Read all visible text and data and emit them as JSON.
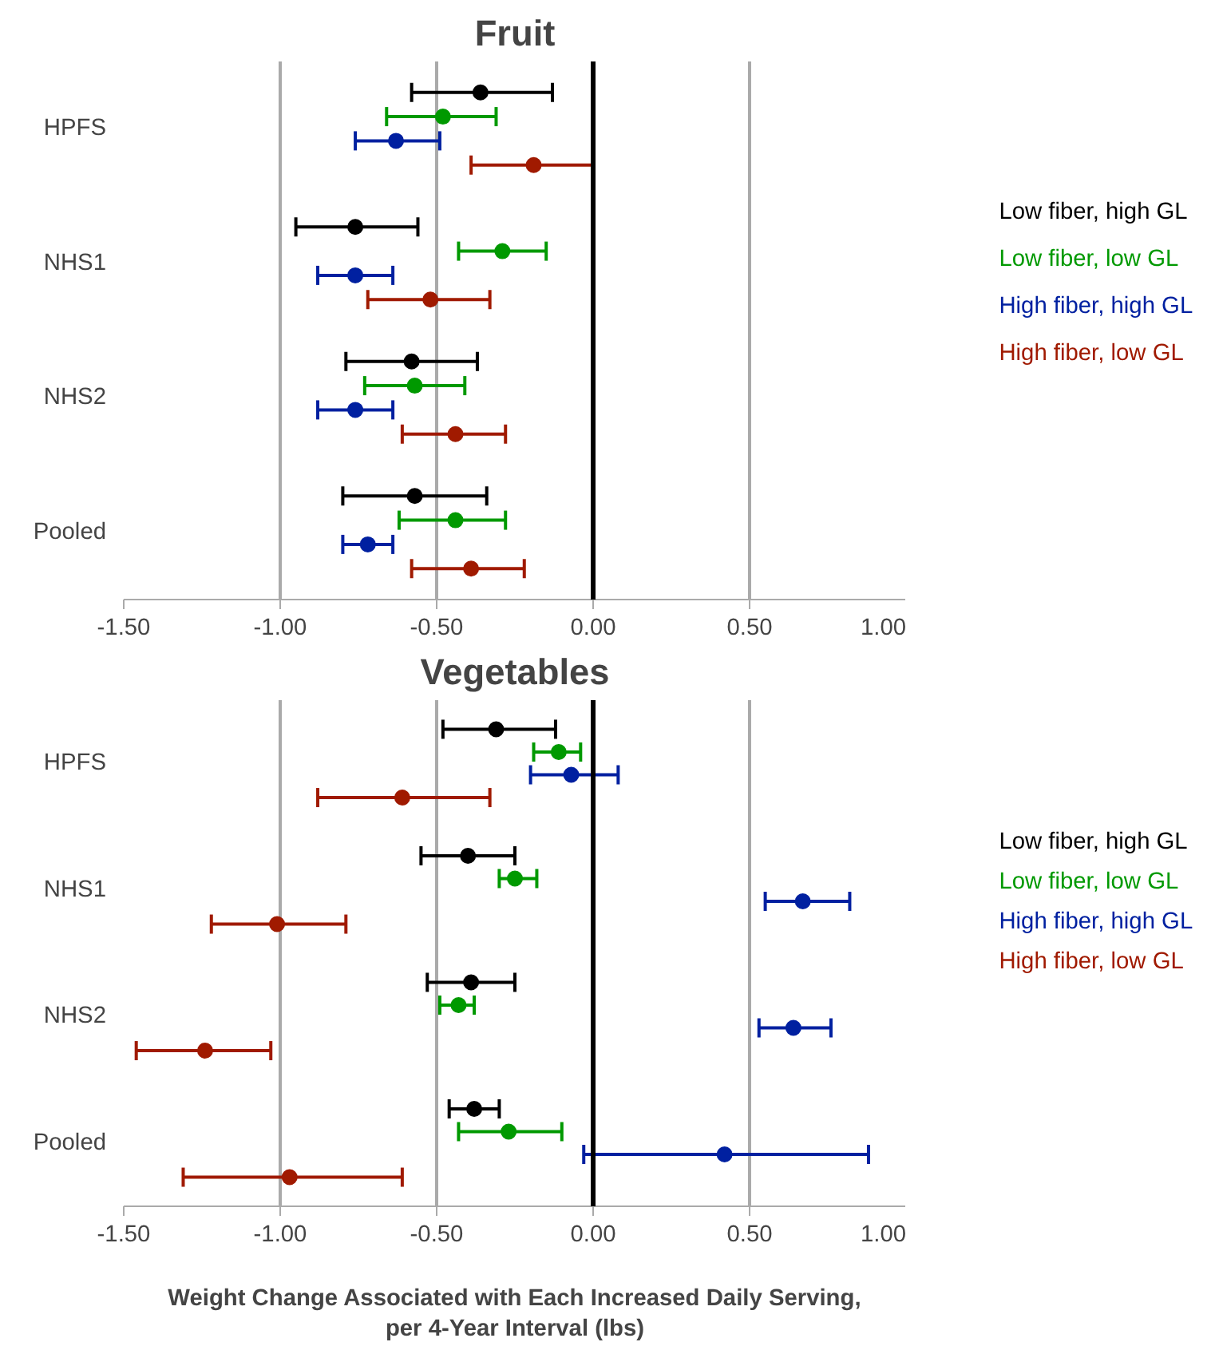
{
  "chart_data": [
    {
      "type": "scatter",
      "orientation": "horizontal",
      "title": "Fruit",
      "categories": [
        "HPFS",
        "NHS1",
        "NHS2",
        "Pooled"
      ],
      "xlim": [
        -1.5,
        1.0
      ],
      "xticks": [
        {
          "value": -1.5,
          "label": "-1.50"
        },
        {
          "value": -1.0,
          "label": "-1.00"
        },
        {
          "value": -0.5,
          "label": "-0.50"
        },
        {
          "value": 0,
          "label": "0.00"
        },
        {
          "value": 0.5,
          "label": "0.50"
        },
        {
          "value": 1.0,
          "label": "1.00"
        }
      ],
      "grid": "x",
      "marker": "circle",
      "ref_lines": [
        {
          "axis": "x",
          "value": 0,
          "color": "#000000"
        }
      ],
      "series": [
        {
          "name": "Low fiber, high GL",
          "color": "#000000",
          "values": [
            -0.36,
            -0.76,
            -0.58,
            -0.57
          ],
          "errors": [
            [
              -0.58,
              -0.13
            ],
            [
              -0.95,
              -0.56
            ],
            [
              -0.79,
              -0.37
            ],
            [
              -0.8,
              -0.34
            ]
          ]
        },
        {
          "name": "Low fiber, low GL",
          "color": "#009900",
          "values": [
            -0.48,
            -0.29,
            -0.57,
            -0.44
          ],
          "errors": [
            [
              -0.66,
              -0.31
            ],
            [
              -0.43,
              -0.15
            ],
            [
              -0.73,
              -0.41
            ],
            [
              -0.62,
              -0.28
            ]
          ]
        },
        {
          "name": "High fiber, high GL",
          "color": "#0020a0",
          "values": [
            -0.63,
            -0.76,
            -0.76,
            -0.72
          ],
          "errors": [
            [
              -0.76,
              -0.49
            ],
            [
              -0.88,
              -0.64
            ],
            [
              -0.88,
              -0.64
            ],
            [
              -0.8,
              -0.64
            ]
          ]
        },
        {
          "name": "High fiber, low GL",
          "color": "#a01a00",
          "values": [
            -0.19,
            -0.52,
            -0.44,
            -0.39
          ],
          "errors": [
            [
              -0.39,
              0.0
            ],
            [
              -0.72,
              -0.33
            ],
            [
              -0.61,
              -0.28
            ],
            [
              -0.58,
              -0.22
            ]
          ]
        }
      ]
    },
    {
      "type": "scatter",
      "orientation": "horizontal",
      "title": "Vegetables",
      "xlabel": "Weight Change Associated with Each Increased Daily Serving,\nper 4-Year Interval (lbs)",
      "categories": [
        "HPFS",
        "NHS1",
        "NHS2",
        "Pooled"
      ],
      "xlim": [
        -1.5,
        1.0
      ],
      "xticks": [
        {
          "value": -1.5,
          "label": "-1.50"
        },
        {
          "value": -1.0,
          "label": "-1.00"
        },
        {
          "value": -0.5,
          "label": "-0.50"
        },
        {
          "value": 0,
          "label": "0.00"
        },
        {
          "value": 0.5,
          "label": "0.50"
        },
        {
          "value": 1.0,
          "label": "1.00"
        }
      ],
      "grid": "x",
      "marker": "circle",
      "ref_lines": [
        {
          "axis": "x",
          "value": 0,
          "color": "#000000"
        }
      ],
      "series": [
        {
          "name": "Low fiber, high GL",
          "color": "#000000",
          "values": [
            -0.31,
            -0.4,
            -0.39,
            -0.38
          ],
          "errors": [
            [
              -0.48,
              -0.12
            ],
            [
              -0.55,
              -0.25
            ],
            [
              -0.53,
              -0.25
            ],
            [
              -0.46,
              -0.3
            ]
          ]
        },
        {
          "name": "Low fiber, low GL",
          "color": "#009900",
          "values": [
            -0.11,
            -0.25,
            -0.43,
            -0.27
          ],
          "errors": [
            [
              -0.19,
              -0.04
            ],
            [
              -0.3,
              -0.18
            ],
            [
              -0.49,
              -0.38
            ],
            [
              -0.43,
              -0.1
            ]
          ]
        },
        {
          "name": "High fiber, high GL",
          "color": "#0020a0",
          "values": [
            -0.07,
            0.67,
            0.64,
            0.42
          ],
          "errors": [
            [
              -0.2,
              0.08
            ],
            [
              0.55,
              0.82
            ],
            [
              0.53,
              0.76
            ],
            [
              -0.03,
              0.88
            ]
          ]
        },
        {
          "name": "High fiber, low GL",
          "color": "#a01a00",
          "values": [
            -0.61,
            -1.01,
            -1.24,
            -0.97
          ],
          "errors": [
            [
              -0.88,
              -0.33
            ],
            [
              -1.22,
              -0.79
            ],
            [
              -1.46,
              -1.03
            ],
            [
              -1.31,
              -0.61
            ]
          ]
        }
      ]
    }
  ]
}
